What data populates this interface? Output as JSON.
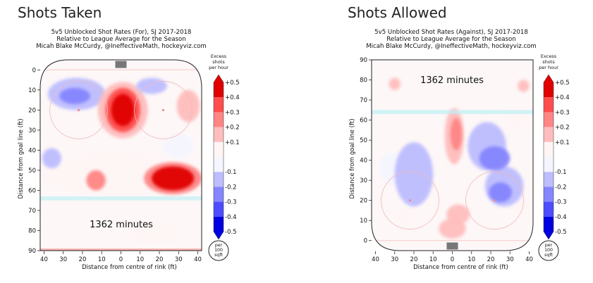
{
  "panels": [
    {
      "heading": "Shots Taken",
      "title_lines": [
        "5v5 Unblocked Shot Rates (For), SJ 2017-2018",
        "Relative to League Average for the Season",
        "Micah Blake McCurdy, @IneffectiveMath, hockeyviz.com"
      ],
      "annotation": "1362 minutes",
      "y_axis_orientation": "0 at top, 90 at bottom"
    },
    {
      "heading": "Shots Allowed",
      "title_lines": [
        "5v5 Unblocked Shot Rates (Against), SJ 2017-2018",
        "Relative to League Average for the Season",
        "Micah Blake McCurdy, @IneffectiveMath, hockeyviz.com"
      ],
      "annotation": "1362 minutes",
      "y_axis_orientation": "90 at top, 0 at bottom"
    }
  ],
  "axes": {
    "xlabel": "Distance from centre of rink (ft)",
    "ylabel": "Distance from goal line (ft)",
    "xticks": [
      "40",
      "30",
      "20",
      "10",
      "0",
      "10",
      "20",
      "30",
      "40"
    ],
    "yticks": [
      "0",
      "10",
      "20",
      "30",
      "40",
      "50",
      "60",
      "70",
      "80",
      "90"
    ]
  },
  "colorbar": {
    "title_lines": [
      "Excess",
      "shots",
      "per hour"
    ],
    "labels": [
      "+0.5",
      "+0.4",
      "+0.3",
      "+0.2",
      "+0.1",
      "-0.1",
      "-0.2",
      "-0.3",
      "-0.4",
      "-0.5"
    ],
    "colors": [
      "#e00000",
      "#ff4d4d",
      "#ff8585",
      "#ffbdbd",
      "#fff5f5",
      "#f5f5ff",
      "#bdbdff",
      "#8585ff",
      "#4d4dff",
      "#0000e0"
    ],
    "unit_lines": [
      "per",
      "100",
      "sqft"
    ]
  },
  "chart_data": [
    {
      "type": "heatmap",
      "title": "5v5 Unblocked Shot Rates (For), SJ 2017-2018",
      "xlabel": "Distance from centre of rink (ft)",
      "ylabel": "Distance from goal line (ft)",
      "xlim": [
        -42,
        42
      ],
      "ylim": [
        -5,
        90
      ],
      "colorbar_range": [
        -0.5,
        0.5
      ],
      "annotation": "1362 minutes",
      "blobs": [
        {
          "x": -23,
          "y": 12,
          "rx": 15,
          "ry": 8,
          "value": -0.2
        },
        {
          "x": -24,
          "y": 13,
          "rx": 8,
          "ry": 4,
          "value": -0.3
        },
        {
          "x": 1,
          "y": 20,
          "rx": 13,
          "ry": 14,
          "value": 0.2
        },
        {
          "x": 1,
          "y": 20,
          "rx": 9,
          "ry": 11,
          "value": 0.4
        },
        {
          "x": 1,
          "y": 20,
          "rx": 6,
          "ry": 8,
          "value": 0.5
        },
        {
          "x": 16,
          "y": 8,
          "rx": 8,
          "ry": 4,
          "value": -0.2
        },
        {
          "x": 35,
          "y": 18,
          "rx": 6,
          "ry": 8,
          "value": 0.2
        },
        {
          "x": 30,
          "y": 38,
          "rx": 8,
          "ry": 6,
          "value": -0.1
        },
        {
          "x": -36,
          "y": 44,
          "rx": 5,
          "ry": 5,
          "value": -0.2
        },
        {
          "x": -2,
          "y": 52,
          "rx": 38,
          "ry": 10,
          "value": 0.1
        },
        {
          "x": -13,
          "y": 55,
          "rx": 5,
          "ry": 5,
          "value": 0.3
        },
        {
          "x": 27,
          "y": 54,
          "rx": 15,
          "ry": 8,
          "value": 0.3
        },
        {
          "x": 27,
          "y": 54,
          "rx": 11,
          "ry": 6,
          "value": 0.5
        },
        {
          "x": 18,
          "y": 81,
          "rx": 10,
          "ry": 5,
          "value": 0.1
        }
      ]
    },
    {
      "type": "heatmap",
      "title": "5v5 Unblocked Shot Rates (Against), SJ 2017-2018",
      "xlabel": "Distance from centre of rink (ft)",
      "ylabel": "Distance from goal line (ft)",
      "xlim": [
        -42,
        42
      ],
      "ylim": [
        -5,
        90
      ],
      "colorbar_range": [
        -0.5,
        0.5
      ],
      "annotation": "1362 minutes",
      "blobs": [
        {
          "x": -20,
          "y": 33,
          "rx": 10,
          "ry": 16,
          "value": -0.2
        },
        {
          "x": -32,
          "y": 36,
          "rx": 6,
          "ry": 8,
          "value": -0.1
        },
        {
          "x": 1,
          "y": 52,
          "rx": 5,
          "ry": 14,
          "value": 0.2
        },
        {
          "x": 2,
          "y": 53,
          "rx": 3,
          "ry": 8,
          "value": 0.3
        },
        {
          "x": 18,
          "y": 47,
          "rx": 10,
          "ry": 12,
          "value": -0.2
        },
        {
          "x": 22,
          "y": 41,
          "rx": 8,
          "ry": 6,
          "value": -0.3
        },
        {
          "x": 27,
          "y": 27,
          "rx": 10,
          "ry": 10,
          "value": -0.2
        },
        {
          "x": 25,
          "y": 24,
          "rx": 6,
          "ry": 5,
          "value": -0.3
        },
        {
          "x": 3,
          "y": 13,
          "rx": 6,
          "ry": 5,
          "value": 0.2
        },
        {
          "x": 0,
          "y": 6,
          "rx": 7,
          "ry": 5,
          "value": 0.2
        },
        {
          "x": -30,
          "y": 78,
          "rx": 3,
          "ry": 3,
          "value": 0.2
        },
        {
          "x": 37,
          "y": 77,
          "rx": 3,
          "ry": 3,
          "value": 0.2
        },
        {
          "x": 34,
          "y": 62,
          "rx": 5,
          "ry": 4,
          "value": 0.1
        },
        {
          "x": -26,
          "y": 12,
          "rx": 4,
          "ry": 3,
          "value": 0.1
        },
        {
          "x": 37,
          "y": 17,
          "rx": 4,
          "ry": 4,
          "value": 0.1
        }
      ]
    }
  ]
}
